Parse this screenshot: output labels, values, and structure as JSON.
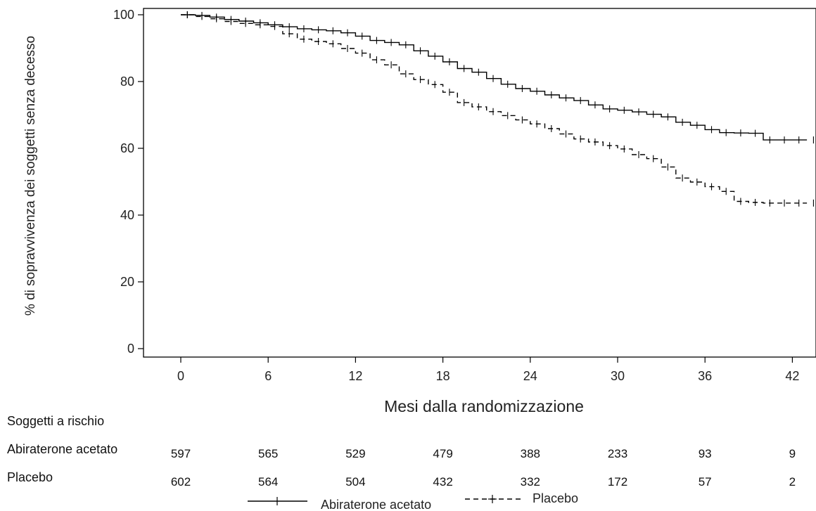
{
  "chart_data": {
    "type": "line",
    "ylabel": "% di sopravvivenza dei soggetti senza decesso",
    "xlabel": "Mesi dalla randomizzazione",
    "xlim": [
      -2,
      43.5
    ],
    "ylim": [
      -2,
      102
    ],
    "x_ticks": [
      0,
      6,
      12,
      18,
      24,
      30,
      36,
      42
    ],
    "y_ticks": [
      0,
      20,
      40,
      60,
      80,
      100
    ],
    "grid": false,
    "legend_position": "bottom-center",
    "series": [
      {
        "name": "Abiraterone acetato",
        "line_style": "solid",
        "color": "#000000",
        "x": [
          0,
          1,
          2,
          3,
          4,
          5,
          6,
          7,
          8,
          9,
          10,
          11,
          12,
          13,
          14,
          15,
          16,
          17,
          18,
          19,
          20,
          21,
          22,
          23,
          24,
          25,
          26,
          27,
          28,
          29,
          30,
          31,
          32,
          33,
          34,
          35,
          36,
          37,
          38,
          39,
          40,
          41,
          42,
          43
        ],
        "y": [
          100,
          99.8,
          99.3,
          98.6,
          98.1,
          97.6,
          97.0,
          96.4,
          95.8,
          95.5,
          95.2,
          94.6,
          93.6,
          92.3,
          91.7,
          91.0,
          89.2,
          87.6,
          85.9,
          83.9,
          82.8,
          80.9,
          79.2,
          77.9,
          77.1,
          76.0,
          75.1,
          74.3,
          73.0,
          71.8,
          71.4,
          70.9,
          70.2,
          69.4,
          67.8,
          66.9,
          65.6,
          64.7,
          64.6,
          64.5,
          62.5,
          62.5,
          62.5,
          62.5
        ]
      },
      {
        "name": "Placebo",
        "line_style": "dashed",
        "color": "#000000",
        "x": [
          0,
          1,
          2,
          3,
          4,
          5,
          6,
          7,
          8,
          9,
          10,
          11,
          12,
          13,
          14,
          15,
          16,
          17,
          18,
          19,
          20,
          21,
          22,
          23,
          24,
          25,
          26,
          27,
          28,
          29,
          30,
          31,
          32,
          33,
          34,
          35,
          36,
          37,
          38,
          39,
          40,
          41,
          42,
          43
        ],
        "y": [
          100,
          99.5,
          98.8,
          98.0,
          97.4,
          97.0,
          96.5,
          94.3,
          92.7,
          92.0,
          91.3,
          89.9,
          88.5,
          86.5,
          85.0,
          82.3,
          80.6,
          79.1,
          76.8,
          73.7,
          72.4,
          71.0,
          69.8,
          68.5,
          67.3,
          65.9,
          64.3,
          62.8,
          61.9,
          60.8,
          59.8,
          58.1,
          56.9,
          54.4,
          51.1,
          49.9,
          48.5,
          47.1,
          44.1,
          43.8,
          43.6,
          43.6,
          43.6,
          43.6
        ]
      }
    ],
    "risk_table": {
      "header": "Soggetti a rischio",
      "times": [
        0,
        6,
        12,
        18,
        24,
        30,
        36,
        42
      ],
      "rows": [
        {
          "label": "Abiraterone acetato",
          "values": [
            "597",
            "565",
            "529",
            "479",
            "388",
            "233",
            "93",
            "9"
          ]
        },
        {
          "label": "Placebo",
          "values": [
            "602",
            "564",
            "504",
            "432",
            "332",
            "172",
            "57",
            "2"
          ]
        }
      ]
    }
  }
}
